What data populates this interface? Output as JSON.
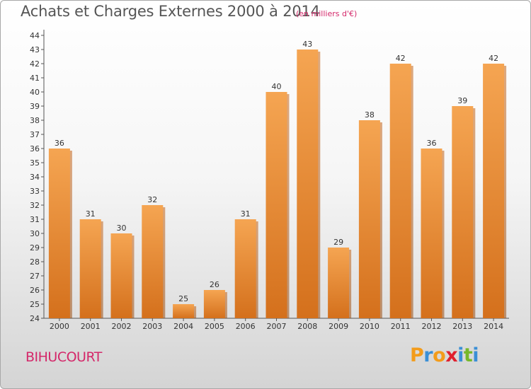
{
  "header": {
    "title": "Achats et Charges Externes 2000 à 2014",
    "subtitle": "(en milliers d'€)"
  },
  "footer": {
    "commune": "BIHUCOURT",
    "logo_letters": [
      "P",
      "r",
      "o",
      "x",
      "i",
      "t",
      "i"
    ],
    "logo_colors": [
      "#f39c1b",
      "#3a8fd6",
      "#f39c1b",
      "#e0202e",
      "#3a8fd6",
      "#77b82a",
      "#3a8fd6"
    ]
  },
  "chart_data": {
    "type": "bar",
    "categories": [
      "2000",
      "2001",
      "2002",
      "2003",
      "2004",
      "2005",
      "2006",
      "2007",
      "2008",
      "2009",
      "2010",
      "2011",
      "2012",
      "2013",
      "2014"
    ],
    "values": [
      36,
      31,
      30,
      32,
      25,
      26,
      31,
      40,
      43,
      29,
      38,
      42,
      36,
      39,
      42
    ],
    "data_labels": [
      "36",
      "31",
      "30",
      "32",
      "25",
      "26",
      "31",
      "40",
      "43",
      "29",
      "38",
      "42",
      "36",
      "39",
      "42"
    ],
    "ylim": [
      24,
      44
    ],
    "yticks": [
      "24",
      "25",
      "26",
      "27",
      "28",
      "29",
      "30",
      "31",
      "32",
      "33",
      "34",
      "35",
      "36",
      "37",
      "38",
      "39",
      "40",
      "41",
      "42",
      "43",
      "44"
    ],
    "grid": false,
    "bar_color_top": "#f5a552",
    "bar_color_bottom": "#d4701c"
  }
}
